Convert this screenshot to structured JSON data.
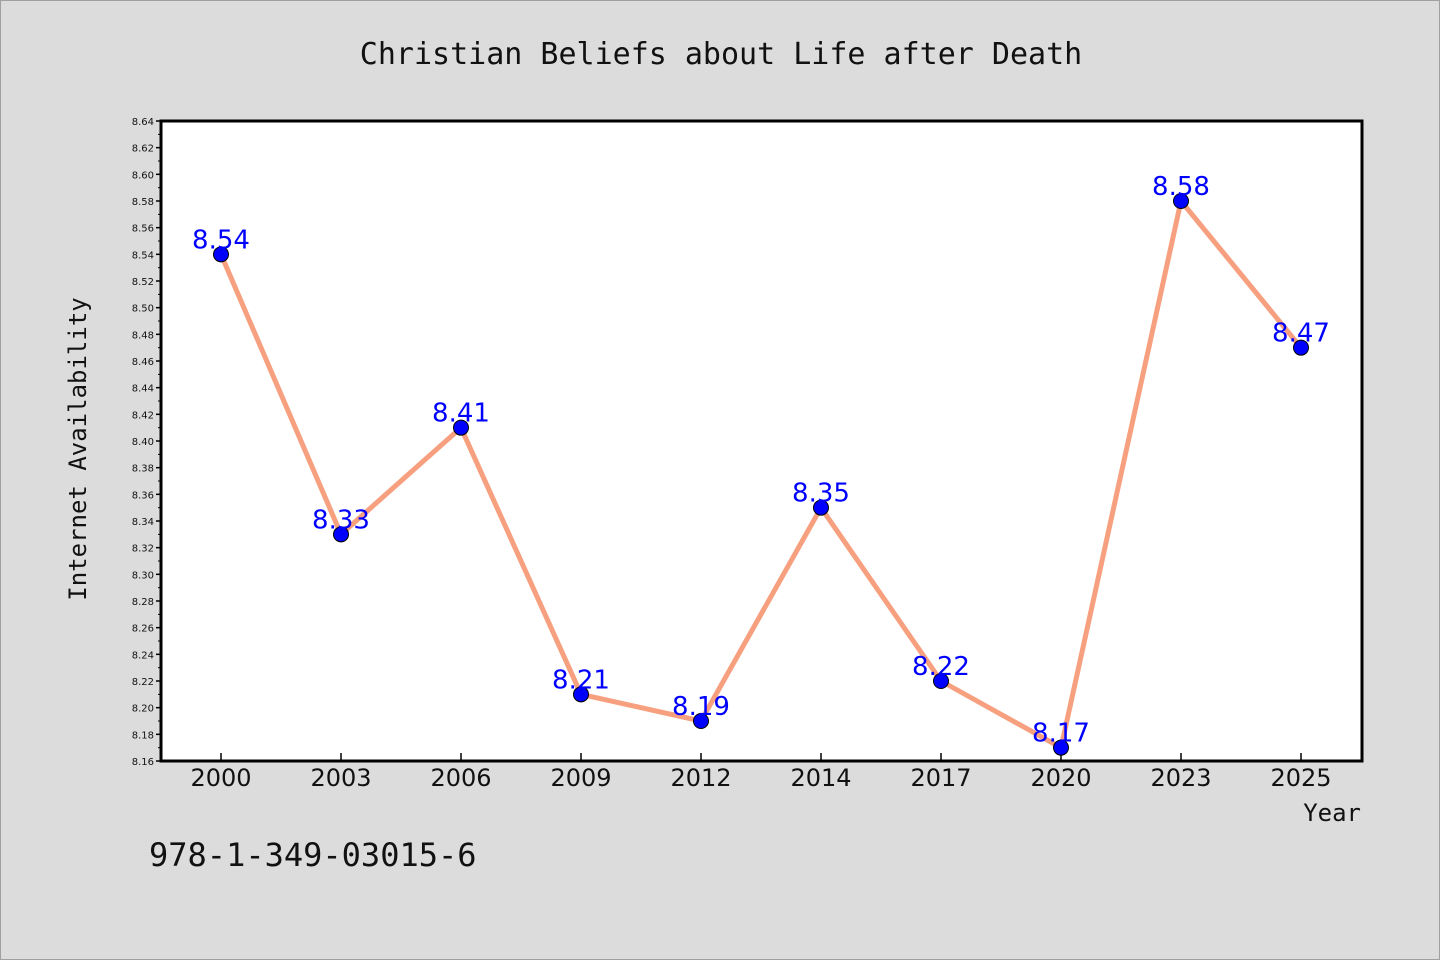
{
  "chart_data": {
    "type": "line",
    "title": "Christian Beliefs about Life after Death",
    "xlabel": "Year",
    "ylabel": "Internet Availability",
    "categories": [
      "2000",
      "2003",
      "2006",
      "2009",
      "2012",
      "2014",
      "2017",
      "2020",
      "2023",
      "2025"
    ],
    "series": [
      {
        "values": [
          8.54,
          8.33,
          8.41,
          8.21,
          8.19,
          8.35,
          8.22,
          8.17,
          8.58,
          8.47
        ],
        "line_color": "#f7a07f",
        "marker_color": "#0000ff",
        "label_color": "#0000ff"
      }
    ],
    "ylim": [
      8.16,
      8.64
    ],
    "y_ticks": [
      "8.16",
      "8.18",
      "8.20",
      "8.22",
      "8.24",
      "8.26",
      "8.28",
      "8.30",
      "8.32",
      "8.34",
      "8.36",
      "8.38",
      "8.40",
      "8.42",
      "8.44",
      "8.46",
      "8.48",
      "8.50",
      "8.52",
      "8.54",
      "8.56",
      "8.58",
      "8.60",
      "8.62",
      "8.64"
    ],
    "grid": false,
    "legend": "none",
    "background_color": "#dcdcdc",
    "plot_background_color": "#ffffff"
  },
  "footer": {
    "isbn": "978-1-349-03015-6"
  }
}
